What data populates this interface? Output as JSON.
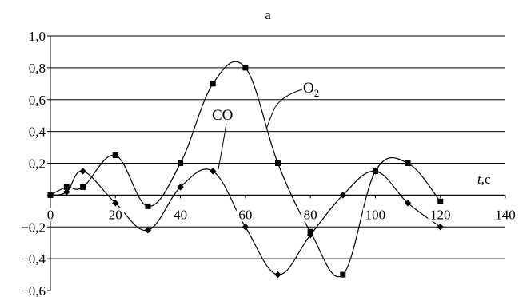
{
  "chart_data": {
    "type": "line",
    "title": "a",
    "xlabel_var": "t",
    "xlabel_unit": ",c",
    "xlim": [
      0,
      140
    ],
    "ylim": [
      -0.6,
      1.0
    ],
    "x_ticks": [
      {
        "value": 0,
        "label": "0"
      },
      {
        "value": 20,
        "label": "20"
      },
      {
        "value": 40,
        "label": "40"
      },
      {
        "value": 60,
        "label": "60"
      },
      {
        "value": 80,
        "label": "80"
      },
      {
        "value": 100,
        "label": "100"
      },
      {
        "value": 120,
        "label": "120"
      },
      {
        "value": 140,
        "label": "140"
      }
    ],
    "y_ticks": [
      {
        "value": 1.0,
        "label": "1,0"
      },
      {
        "value": 0.8,
        "label": "0,8"
      },
      {
        "value": 0.6,
        "label": "0,6"
      },
      {
        "value": 0.4,
        "label": "0,4"
      },
      {
        "value": 0.2,
        "label": "0,2"
      },
      {
        "value": 0,
        "label": ""
      },
      {
        "value": -0.2,
        "label": "−0,2"
      },
      {
        "value": -0.4,
        "label": "−0,4"
      },
      {
        "value": -0.6,
        "label": "−0,6"
      }
    ],
    "grid": "horizontal",
    "series": [
      {
        "name": "O₂",
        "name_main": "O",
        "name_sub": "2",
        "marker": "square",
        "x": [
          0,
          5,
          10,
          20,
          30,
          40,
          50,
          60,
          70,
          80,
          90,
          100,
          110,
          120
        ],
        "y": [
          0,
          0.05,
          0.05,
          0.25,
          -0.07,
          0.2,
          0.7,
          0.8,
          0.2,
          -0.23,
          -0.5,
          0.15,
          0.2,
          -0.04
        ]
      },
      {
        "name": "CO",
        "marker": "diamond",
        "x": [
          0,
          5,
          10,
          20,
          30,
          40,
          50,
          60,
          70,
          80,
          90,
          100,
          110,
          120
        ],
        "y": [
          0,
          0.02,
          0.15,
          -0.05,
          -0.22,
          0.05,
          0.15,
          -0.2,
          -0.5,
          -0.25,
          0,
          0.15,
          -0.05,
          -0.2
        ]
      }
    ]
  }
}
